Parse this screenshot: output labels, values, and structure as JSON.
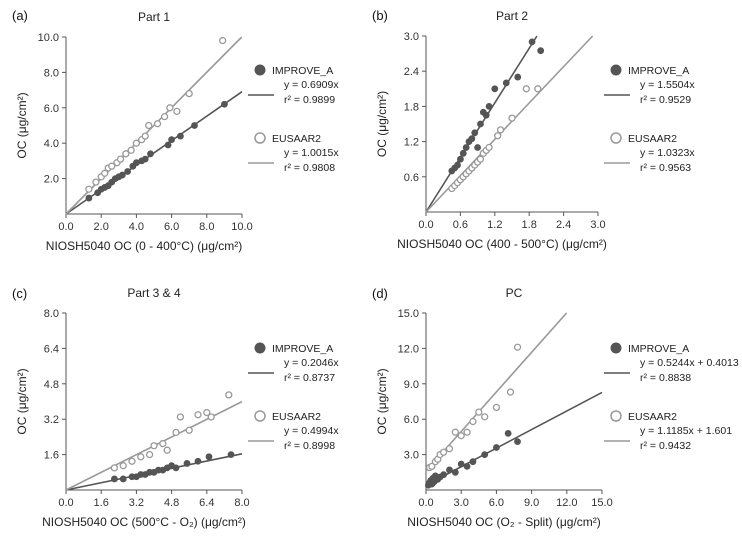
{
  "chart_data": [
    {
      "type": "scatter",
      "panel_label": "(a)",
      "title": "Part 1",
      "xlabel": "NIOSH5040 OC (0 - 400°C) (μg/cm²)",
      "ylabel": "OC (μg/cm²)",
      "xlim": [
        0,
        10
      ],
      "ylim": [
        0,
        10
      ],
      "xticks": [
        "0.0",
        "2.0",
        "4.0",
        "6.0",
        "8.0",
        "10.0"
      ],
      "yticks": [
        "2.0",
        "4.0",
        "6.0",
        "8.0",
        "10.0"
      ],
      "tick_values_x": [
        0,
        2,
        4,
        6,
        8,
        10
      ],
      "tick_values_y": [
        2,
        4,
        6,
        8,
        10
      ],
      "series": [
        {
          "name": "IMPROVE_A",
          "marker": "filled",
          "color": "#555555",
          "slope": 0.6909,
          "intercept": 0,
          "eq": "y = 0.6909x",
          "r2": "r² = 0.9899",
          "x": [
            1.3,
            1.8,
            2.0,
            2.2,
            2.4,
            2.6,
            2.8,
            3.0,
            3.2,
            3.5,
            3.8,
            4.0,
            4.3,
            4.5,
            4.8,
            5.8,
            6.0,
            6.5,
            7.3,
            9.0
          ],
          "y": [
            0.9,
            1.2,
            1.4,
            1.5,
            1.6,
            1.8,
            2.0,
            2.1,
            2.2,
            2.4,
            2.7,
            2.9,
            3.0,
            3.1,
            3.4,
            3.9,
            4.2,
            4.4,
            5.0,
            6.2
          ]
        },
        {
          "name": "EUSAAR2",
          "marker": "open",
          "color": "#999999",
          "slope": 1.0015,
          "intercept": 0,
          "eq": "y = 1.0015x",
          "r2": "r² = 0.9808",
          "x": [
            1.3,
            1.7,
            2.0,
            2.2,
            2.4,
            2.6,
            2.9,
            3.1,
            3.4,
            3.7,
            4.0,
            4.3,
            4.5,
            4.7,
            5.2,
            5.6,
            5.9,
            6.3,
            7.0,
            8.9
          ],
          "y": [
            1.4,
            1.8,
            2.1,
            2.3,
            2.6,
            2.7,
            2.9,
            3.1,
            3.4,
            3.6,
            4.0,
            4.2,
            4.4,
            5.0,
            5.1,
            5.5,
            6.0,
            5.8,
            6.8,
            9.8
          ]
        }
      ]
    },
    {
      "type": "scatter",
      "panel_label": "(b)",
      "title": "Part 2",
      "xlabel": "NIOSH5040 OC (400 - 500°C) (μg/cm²)",
      "ylabel": "OC (μg/cm²)",
      "xlim": [
        0,
        3
      ],
      "ylim": [
        0,
        3
      ],
      "xticks": [
        "0.0",
        "0.6",
        "1.2",
        "1.8",
        "2.4",
        "3.0"
      ],
      "yticks": [
        "0.6",
        "1.2",
        "1.8",
        "2.4",
        "3.0"
      ],
      "tick_values_x": [
        0,
        0.6,
        1.2,
        1.8,
        2.4,
        3.0
      ],
      "tick_values_y": [
        0.6,
        1.2,
        1.8,
        2.4,
        3.0
      ],
      "series": [
        {
          "name": "IMPROVE_A",
          "marker": "filled",
          "color": "#555555",
          "slope": 1.5504,
          "intercept": 0,
          "eq": "y = 1.5504x",
          "r2": "r² = 0.9529",
          "x": [
            0.45,
            0.5,
            0.55,
            0.6,
            0.65,
            0.7,
            0.75,
            0.8,
            0.85,
            0.9,
            0.95,
            1.0,
            1.05,
            1.1,
            1.2,
            1.4,
            1.6,
            1.85,
            2.0
          ],
          "y": [
            0.7,
            0.75,
            0.8,
            0.9,
            1.0,
            1.1,
            1.2,
            1.25,
            1.35,
            1.1,
            1.5,
            1.7,
            1.65,
            1.8,
            2.1,
            2.2,
            2.3,
            2.9,
            2.75
          ]
        },
        {
          "name": "EUSAAR2",
          "marker": "open",
          "color": "#999999",
          "slope": 1.0323,
          "intercept": 0,
          "eq": "y = 1.0323x",
          "r2": "r² = 0.9563",
          "x": [
            0.45,
            0.5,
            0.55,
            0.6,
            0.65,
            0.7,
            0.75,
            0.8,
            0.85,
            0.9,
            0.95,
            1.0,
            1.05,
            1.1,
            1.25,
            1.3,
            1.5,
            1.75,
            1.95
          ],
          "y": [
            0.4,
            0.45,
            0.5,
            0.55,
            0.6,
            0.65,
            0.7,
            0.75,
            0.8,
            0.85,
            0.9,
            1.0,
            1.05,
            1.1,
            1.3,
            1.4,
            1.6,
            2.1,
            2.1
          ]
        }
      ]
    },
    {
      "type": "scatter",
      "panel_label": "(c)",
      "title": "Part 3 & 4",
      "xlabel": "NIOSH5040 OC (500°C - O₂) (μg/cm²)",
      "ylabel": "OC (μg/cm²)",
      "xlim": [
        0,
        8
      ],
      "ylim": [
        0,
        8
      ],
      "xticks": [
        "0.0",
        "1.6",
        "3.2",
        "4.8",
        "6.4",
        "8.0"
      ],
      "yticks": [
        "1.6",
        "3.2",
        "4.8",
        "6.4",
        "8.0"
      ],
      "tick_values_x": [
        0,
        1.6,
        3.2,
        4.8,
        6.4,
        8.0
      ],
      "tick_values_y": [
        1.6,
        3.2,
        4.8,
        6.4,
        8.0
      ],
      "series": [
        {
          "name": "IMPROVE_A",
          "marker": "filled",
          "color": "#555555",
          "slope": 0.2046,
          "intercept": 0,
          "eq": "y = 0.2046x",
          "r2": "r² = 0.8737",
          "x": [
            2.2,
            2.6,
            3.0,
            3.2,
            3.4,
            3.6,
            3.8,
            4.0,
            4.2,
            4.4,
            4.6,
            4.8,
            5.0,
            5.5,
            6.0,
            6.5,
            7.5
          ],
          "y": [
            0.5,
            0.5,
            0.6,
            0.6,
            0.7,
            0.7,
            0.8,
            0.8,
            0.9,
            0.9,
            1.0,
            1.1,
            1.0,
            1.2,
            1.3,
            1.5,
            1.6
          ]
        },
        {
          "name": "EUSAAR2",
          "marker": "open",
          "color": "#999999",
          "slope": 0.4994,
          "intercept": 0,
          "eq": "y = 0.4994x",
          "r2": "r² = 0.8998",
          "x": [
            2.2,
            2.6,
            3.0,
            3.4,
            3.8,
            4.0,
            4.4,
            4.6,
            5.0,
            5.2,
            5.6,
            6.0,
            6.4,
            6.6,
            7.4
          ],
          "y": [
            1.0,
            1.1,
            1.3,
            1.5,
            1.6,
            2.0,
            2.1,
            1.8,
            2.6,
            3.3,
            2.7,
            3.4,
            3.5,
            3.3,
            4.3
          ]
        }
      ]
    },
    {
      "type": "scatter",
      "panel_label": "(d)",
      "title": "PC",
      "xlabel": "NIOSH5040 OC (O₂ - Split) (μg/cm²)",
      "ylabel": "OC (μg/cm²)",
      "xlim": [
        0,
        15
      ],
      "ylim": [
        0,
        15
      ],
      "xticks": [
        "0.0",
        "3.0",
        "6.0",
        "9.0",
        "12.0",
        "15.0"
      ],
      "yticks": [
        "3.0",
        "6.0",
        "9.0",
        "12.0",
        "15.0"
      ],
      "tick_values_x": [
        0,
        3,
        6,
        9,
        12,
        15
      ],
      "tick_values_y": [
        3,
        6,
        9,
        12,
        15
      ],
      "series": [
        {
          "name": "IMPROVE_A",
          "marker": "filled",
          "color": "#555555",
          "slope": 0.5244,
          "intercept": 0.4013,
          "eq": "y = 0.5244x + 0.4013",
          "r2": "r² = 0.8838",
          "x": [
            0.2,
            0.3,
            0.4,
            0.5,
            0.6,
            0.7,
            0.8,
            1.0,
            1.2,
            1.5,
            2.0,
            2.5,
            3.0,
            3.5,
            4.0,
            5.0,
            6.0,
            7.0,
            7.8
          ],
          "y": [
            0.4,
            0.6,
            0.8,
            0.5,
            1.0,
            0.7,
            1.2,
            0.9,
            1.1,
            1.3,
            1.7,
            1.5,
            2.2,
            2.0,
            2.4,
            3.0,
            3.6,
            4.8,
            4.1
          ]
        },
        {
          "name": "EUSAAR2",
          "marker": "open",
          "color": "#999999",
          "slope": 1.1185,
          "intercept": 1.601,
          "eq": "y = 1.1185x + 1.601",
          "r2": "r² = 0.9432",
          "x": [
            0.3,
            0.5,
            0.8,
            1.0,
            1.2,
            1.5,
            2.0,
            2.5,
            3.0,
            3.5,
            4.0,
            4.5,
            5.0,
            6.0,
            7.2,
            7.8
          ],
          "y": [
            1.9,
            2.0,
            2.4,
            2.6,
            3.0,
            3.2,
            3.5,
            4.9,
            4.6,
            4.9,
            5.8,
            6.6,
            6.2,
            7.0,
            8.3,
            12.1
          ]
        }
      ]
    }
  ]
}
